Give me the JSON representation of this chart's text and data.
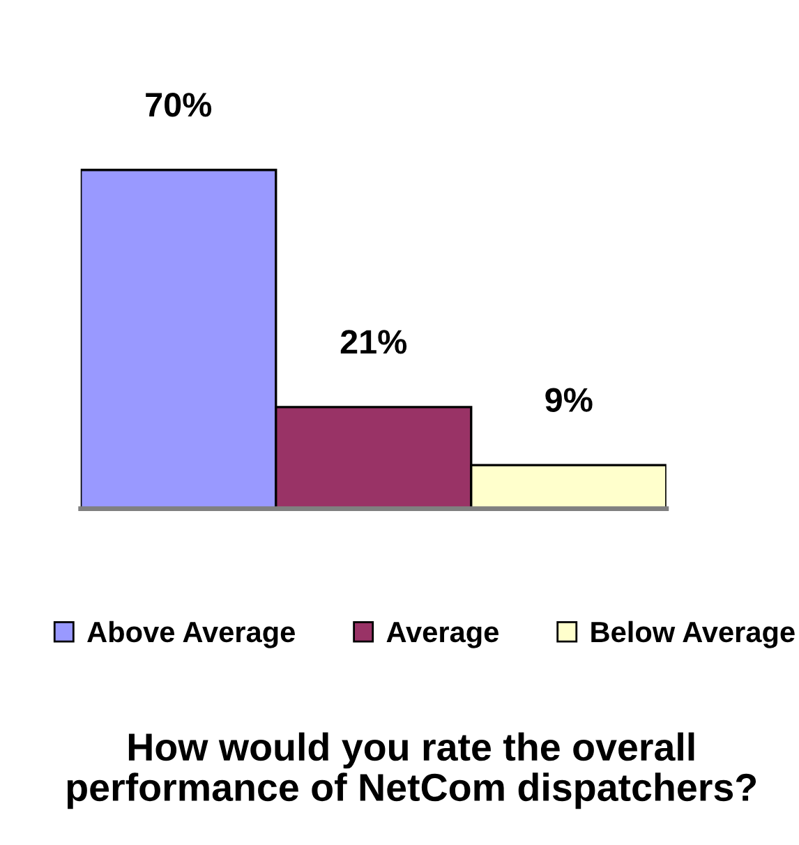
{
  "chart_data": {
    "type": "bar",
    "title": "How would you rate the overall\nperformance of NetCom dispatchers?",
    "categories": [
      null
    ],
    "series": [
      {
        "name": "Above Average",
        "color": "#9999ff",
        "values": [
          70
        ],
        "value_labels": [
          "70%"
        ]
      },
      {
        "name": "Average",
        "color": "#993366",
        "values": [
          21
        ],
        "value_labels": [
          "21%"
        ]
      },
      {
        "name": "Below Average",
        "color": "#ffffcc",
        "values": [
          9
        ],
        "value_labels": [
          "9%"
        ]
      }
    ],
    "tick_labels": false,
    "legend": "bottom"
  }
}
